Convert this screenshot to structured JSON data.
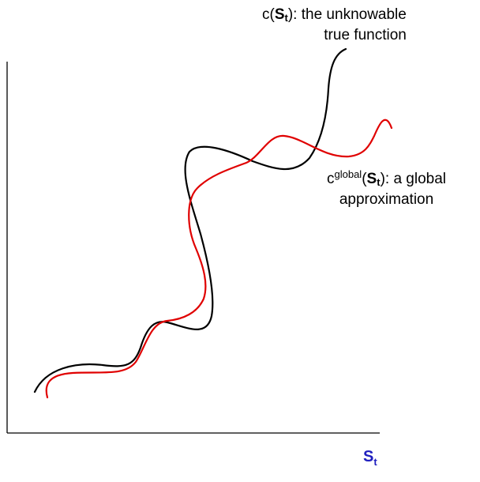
{
  "labels": {
    "true_function": {
      "prefix": "c(",
      "symbol": "S",
      "subscript": "t",
      "suffix": "):  the unknowable",
      "line2": "true function"
    },
    "global_approx": {
      "prefix": "c",
      "superscript": "global",
      "paren_open": "(",
      "symbol": "S",
      "subscript": "t",
      "suffix": "):  a global",
      "line2": "approximation"
    },
    "x_axis": {
      "symbol": "S",
      "subscript": "t"
    }
  },
  "colors": {
    "true_curve": "#000000",
    "approx_curve": "#e00000",
    "axis": "#000000",
    "axis_label": "#1f1fbf"
  }
}
